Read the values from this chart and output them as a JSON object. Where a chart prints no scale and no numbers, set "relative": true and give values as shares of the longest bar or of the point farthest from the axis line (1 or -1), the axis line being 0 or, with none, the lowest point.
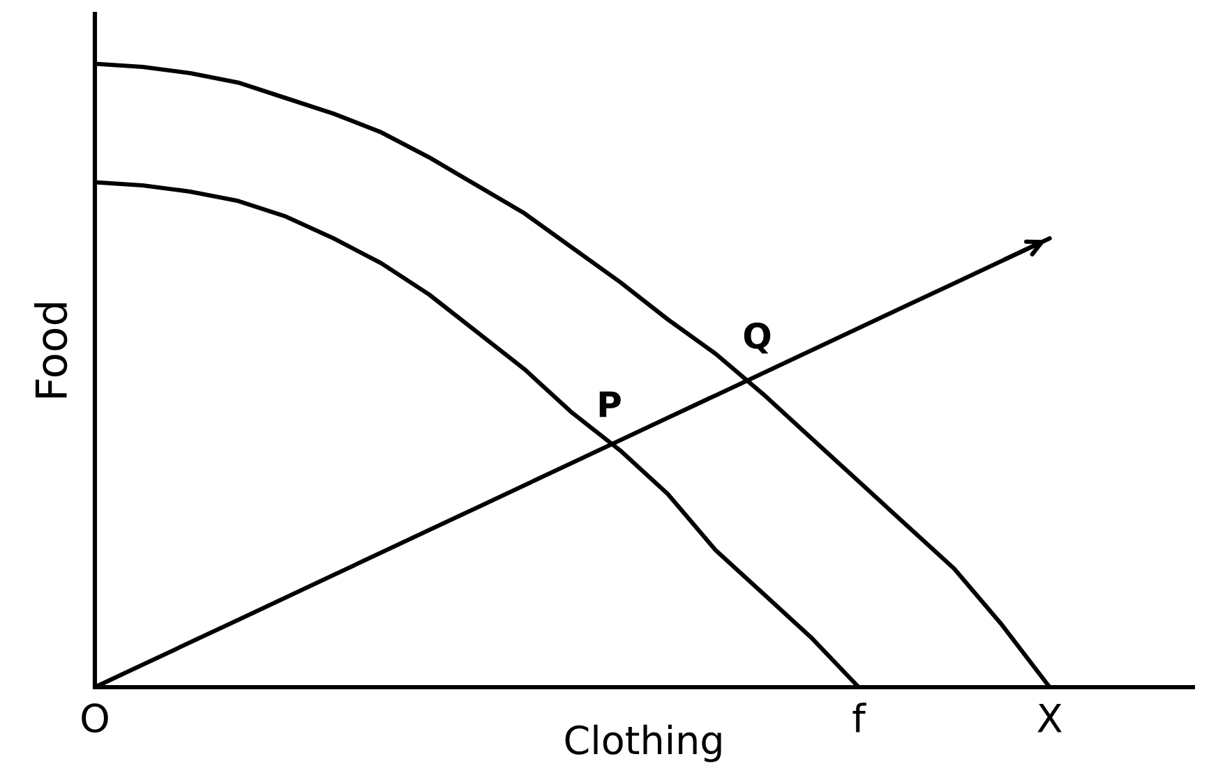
{
  "chart_data": {
    "type": "line",
    "relative": true,
    "xlabel": "Clothing",
    "ylabel": "Food",
    "categories": [
      "O",
      null,
      null,
      null,
      null,
      null,
      null,
      null,
      null,
      null,
      null,
      null,
      null,
      null,
      null,
      null,
      "f",
      null,
      null,
      null,
      "X",
      null,
      null,
      null
    ],
    "tick_labels": "x",
    "grid": false,
    "legend": false,
    "marker": "none",
    "line_style": "solid",
    "series": [
      {
        "color": "#000000",
        "values": [
          1.0,
          0.995,
          0.985,
          0.97,
          0.945,
          0.92,
          0.89,
          0.85,
          0.805,
          0.76,
          0.705,
          0.65,
          0.59,
          0.535,
          0.47,
          0.4,
          0.33,
          0.26,
          0.19,
          0.1,
          0,
          null,
          null,
          null
        ]
      },
      {
        "color": "#000000",
        "values": [
          0.81,
          0.805,
          0.795,
          0.78,
          0.755,
          0.72,
          0.68,
          0.63,
          0.57,
          0.51,
          0.44,
          0.38,
          0.31,
          0.22,
          0.15,
          0.08,
          0,
          null,
          null,
          null,
          null,
          null,
          null,
          null
        ]
      },
      {
        "color": "#000000",
        "values": [
          0,
          0.036,
          0.072,
          0.108,
          0.144,
          0.18,
          0.216,
          0.252,
          0.288,
          0.324,
          0.36,
          0.396,
          0.432,
          0.468,
          0.504,
          0.54,
          0.576,
          0.612,
          0.648,
          0.684,
          0.72,
          null,
          null,
          null
        ]
      }
    ],
    "annotations": [
      {
        "text": "P",
        "y": 0.39
      },
      {
        "text": "Q",
        "y": 0.5
      }
    ]
  }
}
